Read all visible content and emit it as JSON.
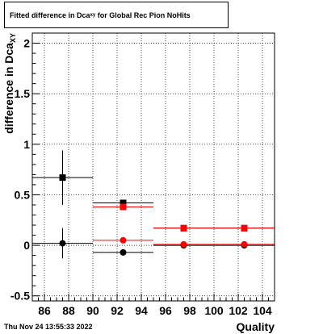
{
  "title": {
    "main": "Fitted difference in Dca",
    "subscript": "xy",
    "suffix": "for Global Rec Pion NoHits"
  },
  "footer": "Thu Nov 24 13:55:33 2022",
  "chart_data": {
    "type": "scatter",
    "xlabel": "Quality",
    "ylabel": "difference in Dca",
    "ylabel_subscript": "XY",
    "xlim": [
      85,
      105
    ],
    "ylim": [
      -0.55,
      2.1
    ],
    "xticks": [
      86,
      88,
      90,
      92,
      94,
      96,
      98,
      100,
      102,
      104
    ],
    "yticks": [
      -0.5,
      0,
      0.5,
      1,
      1.5,
      2
    ],
    "grid": true,
    "colors": {
      "black": "#000000",
      "red": "#ff0000"
    },
    "series": [
      {
        "color": "#000000",
        "marker": "square",
        "points": [
          {
            "x": 87.5,
            "y": 0.67,
            "xerr": 2.5,
            "yerr": 0.27
          },
          {
            "x": 92.5,
            "y": 0.42,
            "xerr": 2.5,
            "yerr": 0.02
          },
          {
            "x": 97.5,
            "y": 0.17,
            "xerr": 2.5,
            "yerr": 0.0
          },
          {
            "x": 102.5,
            "y": 0.17,
            "xerr": 2.5,
            "yerr": 0.0
          }
        ]
      },
      {
        "color": "#ff0000",
        "marker": "square",
        "points": [
          {
            "x": 92.5,
            "y": 0.38,
            "xerr": 2.5,
            "yerr": 0.03
          },
          {
            "x": 97.5,
            "y": 0.17,
            "xerr": 2.5,
            "yerr": 0.0
          },
          {
            "x": 102.5,
            "y": 0.17,
            "xerr": 2.5,
            "yerr": 0.0
          }
        ]
      },
      {
        "color": "#000000",
        "marker": "circle",
        "points": [
          {
            "x": 87.5,
            "y": 0.02,
            "xerr": 2.5,
            "yerr": 0.15
          },
          {
            "x": 92.5,
            "y": -0.07,
            "xerr": 2.5,
            "yerr": 0.0
          },
          {
            "x": 97.5,
            "y": 0.0,
            "xerr": 2.5,
            "yerr": 0.0
          },
          {
            "x": 102.5,
            "y": 0.0,
            "xerr": 2.5,
            "yerr": 0.0
          }
        ]
      },
      {
        "color": "#ff0000",
        "marker": "circle",
        "points": [
          {
            "x": 92.5,
            "y": 0.05,
            "xerr": 2.5,
            "yerr": 0.03
          },
          {
            "x": 97.5,
            "y": 0.01,
            "xerr": 2.5,
            "yerr": 0.0
          },
          {
            "x": 102.5,
            "y": 0.01,
            "xerr": 2.5,
            "yerr": 0.0
          }
        ]
      }
    ]
  }
}
